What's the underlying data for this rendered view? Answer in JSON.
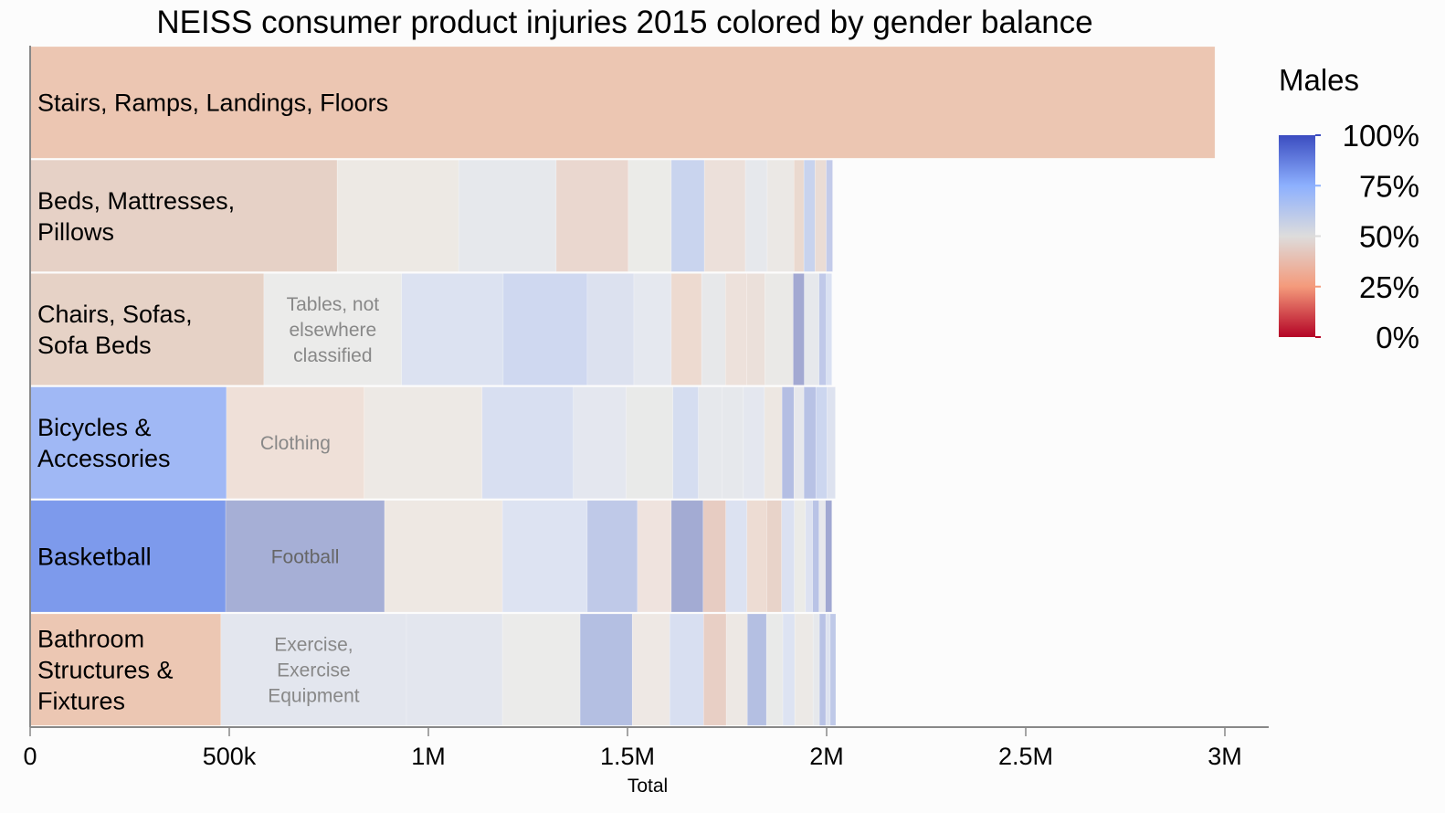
{
  "chart_data": {
    "type": "bar",
    "subtype": "stacked-horizontal-treemap-rows",
    "title": "NEISS consumer product injuries 2015 colored by gender balance",
    "xlabel": "Total",
    "ylabel": "",
    "xlim": [
      0,
      3100000
    ],
    "x_ticks": [
      {
        "value": 0,
        "label": "0"
      },
      {
        "value": 500000,
        "label": "500k"
      },
      {
        "value": 1000000,
        "label": "1M"
      },
      {
        "value": 1500000,
        "label": "1.5M"
      },
      {
        "value": 2000000,
        "label": "2M"
      },
      {
        "value": 2500000,
        "label": "2.5M"
      },
      {
        "value": 3000000,
        "label": "3M"
      }
    ],
    "legend": {
      "title": "Males",
      "placement": "right",
      "type": "diverging-gradient",
      "stops": [
        {
          "value": 1.0,
          "label": "100%",
          "color": "#3b4cc0"
        },
        {
          "value": 0.75,
          "label": "75%",
          "color": "#8db0fe"
        },
        {
          "value": 0.5,
          "label": "50%",
          "color": "#dddcdc"
        },
        {
          "value": 0.25,
          "label": "25%",
          "color": "#f49a7b"
        },
        {
          "value": 0.0,
          "label": "0%",
          "color": "#b40426"
        }
      ]
    },
    "rows": [
      {
        "label": "Stairs, Ramps, Landings, Floors",
        "segments": [
          {
            "label": "Stairs, Ramps, Landings, Floors",
            "value": 2975000,
            "male_share": 0.36,
            "color": "#ecc6b2"
          }
        ]
      },
      {
        "label": "Beds, Mattresses, Pillows",
        "segments": [
          {
            "label": "Beds, Mattresses, Pillows",
            "value": 771000,
            "male_share": 0.42,
            "color": "#e6d1c6"
          },
          {
            "label": "",
            "value": 305000,
            "male_share": 0.49,
            "color": "#ede9e4"
          },
          {
            "label": "",
            "value": 245000,
            "male_share": 0.52,
            "color": "#e6e8ec"
          },
          {
            "label": "",
            "value": 181000,
            "male_share": 0.42,
            "color": "#ead7cf"
          },
          {
            "label": "",
            "value": 108000,
            "male_share": 0.5,
            "color": "#ebebe8"
          },
          {
            "label": "",
            "value": 83000,
            "male_share": 0.62,
            "color": "#c9d4ee"
          },
          {
            "label": "",
            "value": 103000,
            "male_share": 0.46,
            "color": "#ece0da"
          },
          {
            "label": "",
            "value": 55000,
            "male_share": 0.52,
            "color": "#e6e8ec"
          },
          {
            "label": "",
            "value": 67000,
            "male_share": 0.5,
            "color": "#ebe8e5"
          },
          {
            "label": "",
            "value": 25000,
            "male_share": 0.42,
            "color": "#ead9cf"
          },
          {
            "label": "",
            "value": 28000,
            "male_share": 0.62,
            "color": "#c8d3ee"
          },
          {
            "label": "",
            "value": 28000,
            "male_share": 0.45,
            "color": "#eadcd5"
          },
          {
            "label": "",
            "value": 16000,
            "male_share": 0.66,
            "color": "#c3cbea"
          }
        ]
      },
      {
        "label": "Chairs, Sofas, Sofa Beds",
        "segments": [
          {
            "label": "Chairs, Sofas, Sofa Beds",
            "value": 587000,
            "male_share": 0.42,
            "color": "#e6d2c6"
          },
          {
            "label": "Tables, not elsewhere classified",
            "value": 346000,
            "male_share": 0.5,
            "color": "#ebebea"
          },
          {
            "label": "",
            "value": 255000,
            "male_share": 0.56,
            "color": "#dce2f1"
          },
          {
            "label": "",
            "value": 211000,
            "male_share": 0.6,
            "color": "#cfd8f0"
          },
          {
            "label": "",
            "value": 117000,
            "male_share": 0.56,
            "color": "#dce1ef"
          },
          {
            "label": "",
            "value": 94000,
            "male_share": 0.53,
            "color": "#e5e8ef"
          },
          {
            "label": "",
            "value": 76000,
            "male_share": 0.43,
            "color": "#eddad0"
          },
          {
            "label": "",
            "value": 60000,
            "male_share": 0.51,
            "color": "#e7e8ea"
          },
          {
            "label": "",
            "value": 53000,
            "male_share": 0.46,
            "color": "#ede1db"
          },
          {
            "label": "",
            "value": 46000,
            "male_share": 0.46,
            "color": "#ebe0da"
          },
          {
            "label": "",
            "value": 71000,
            "male_share": 0.5,
            "color": "#eae9e7"
          },
          {
            "label": "",
            "value": 28000,
            "male_share": 0.72,
            "color": "#a3a9d2"
          },
          {
            "label": "",
            "value": 37000,
            "male_share": 0.52,
            "color": "#e6e8ec"
          },
          {
            "label": "",
            "value": 18000,
            "male_share": 0.66,
            "color": "#c0c9e9"
          },
          {
            "label": "",
            "value": 14000,
            "male_share": 0.56,
            "color": "#dae1f2"
          }
        ]
      },
      {
        "label": "Bicycles & Accessories",
        "segments": [
          {
            "label": "Bicycles & Accessories",
            "value": 493000,
            "male_share": 0.72,
            "color": "#a0b8f5"
          },
          {
            "label": "Clothing",
            "value": 346000,
            "male_share": 0.45,
            "color": "#efe0d8"
          },
          {
            "label": "",
            "value": 296000,
            "male_share": 0.49,
            "color": "#ede9e5"
          },
          {
            "label": "",
            "value": 229000,
            "male_share": 0.57,
            "color": "#d8dff1"
          },
          {
            "label": "",
            "value": 133000,
            "male_share": 0.53,
            "color": "#e4e7ef"
          },
          {
            "label": "",
            "value": 117000,
            "male_share": 0.51,
            "color": "#e9eae9"
          },
          {
            "label": "",
            "value": 64000,
            "male_share": 0.58,
            "color": "#d5ddf0"
          },
          {
            "label": "",
            "value": 60000,
            "male_share": 0.52,
            "color": "#e6e8ec"
          },
          {
            "label": "",
            "value": 53000,
            "male_share": 0.52,
            "color": "#e6e8ec"
          },
          {
            "label": "",
            "value": 53000,
            "male_share": 0.53,
            "color": "#e4e7ef"
          },
          {
            "label": "",
            "value": 44000,
            "male_share": 0.48,
            "color": "#ede7e2"
          },
          {
            "label": "",
            "value": 30000,
            "male_share": 0.68,
            "color": "#b4bee3"
          },
          {
            "label": "",
            "value": 25000,
            "male_share": 0.52,
            "color": "#e7e8ec"
          },
          {
            "label": "",
            "value": 30000,
            "male_share": 0.67,
            "color": "#b8c2e5"
          },
          {
            "label": "",
            "value": 28000,
            "male_share": 0.6,
            "color": "#ccd6ef"
          },
          {
            "label": "",
            "value": 21000,
            "male_share": 0.55,
            "color": "#dde2ef"
          }
        ]
      },
      {
        "label": "Basketball",
        "segments": [
          {
            "label": "Basketball",
            "value": 491000,
            "male_share": 0.82,
            "color": "#7d9aec"
          },
          {
            "label": "Football",
            "value": 399000,
            "male_share": 0.74,
            "color": "#a6afd6"
          },
          {
            "label": "",
            "value": 296000,
            "male_share": 0.48,
            "color": "#eee8e3"
          },
          {
            "label": "",
            "value": 213000,
            "male_share": 0.56,
            "color": "#dde3f2"
          },
          {
            "label": "",
            "value": 126000,
            "male_share": 0.64,
            "color": "#bfc9e8"
          },
          {
            "label": "",
            "value": 85000,
            "male_share": 0.46,
            "color": "#efe3de"
          },
          {
            "label": "",
            "value": 80000,
            "male_share": 0.74,
            "color": "#a3abd3"
          },
          {
            "label": "",
            "value": 57000,
            "male_share": 0.4,
            "color": "#e7ccc2"
          },
          {
            "label": "",
            "value": 53000,
            "male_share": 0.56,
            "color": "#dce2f1"
          },
          {
            "label": "",
            "value": 50000,
            "male_share": 0.45,
            "color": "#eddcd3"
          },
          {
            "label": "",
            "value": 37000,
            "male_share": 0.42,
            "color": "#e8d3c9"
          },
          {
            "label": "",
            "value": 32000,
            "male_share": 0.56,
            "color": "#dbe1f1"
          },
          {
            "label": "",
            "value": 28000,
            "male_share": 0.51,
            "color": "#ebebe8"
          },
          {
            "label": "",
            "value": 18000,
            "male_share": 0.56,
            "color": "#dde2f1"
          },
          {
            "label": "",
            "value": 16000,
            "male_share": 0.66,
            "color": "#b9c3e6"
          },
          {
            "label": "",
            "value": 16000,
            "male_share": 0.52,
            "color": "#e7e8ec"
          },
          {
            "label": "",
            "value": 16000,
            "male_share": 0.74,
            "color": "#a1a8d2"
          }
        ]
      },
      {
        "label": "Bathroom Structures & Fixtures",
        "segments": [
          {
            "label": "Bathroom Structures & Fixtures",
            "value": 479000,
            "male_share": 0.36,
            "color": "#ecc7b3"
          },
          {
            "label": "Exercise, Exercise Equipment",
            "value": 466000,
            "male_share": 0.53,
            "color": "#e3e6ee"
          },
          {
            "label": "",
            "value": 241000,
            "male_share": 0.53,
            "color": "#e3e6ee"
          },
          {
            "label": "",
            "value": 195000,
            "male_share": 0.5,
            "color": "#ebebea"
          },
          {
            "label": "",
            "value": 131000,
            "male_share": 0.68,
            "color": "#b4bfe2"
          },
          {
            "label": "",
            "value": 94000,
            "male_share": 0.48,
            "color": "#eee8e4"
          },
          {
            "label": "",
            "value": 85000,
            "male_share": 0.57,
            "color": "#d8dff1"
          },
          {
            "label": "",
            "value": 57000,
            "male_share": 0.41,
            "color": "#e8cfc5"
          },
          {
            "label": "",
            "value": 53000,
            "male_share": 0.49,
            "color": "#ede8e4"
          },
          {
            "label": "",
            "value": 48000,
            "male_share": 0.68,
            "color": "#b4bfe2"
          },
          {
            "label": "",
            "value": 41000,
            "male_share": 0.51,
            "color": "#e9eae9"
          },
          {
            "label": "",
            "value": 30000,
            "male_share": 0.56,
            "color": "#dde3f2"
          },
          {
            "label": "",
            "value": 46000,
            "male_share": 0.49,
            "color": "#ece9e6"
          },
          {
            "label": "",
            "value": 16000,
            "male_share": 0.52,
            "color": "#e6e8ec"
          },
          {
            "label": "",
            "value": 16000,
            "male_share": 0.67,
            "color": "#b8c2e5"
          },
          {
            "label": "",
            "value": 11000,
            "male_share": 0.55,
            "color": "#dde2ef"
          },
          {
            "label": "",
            "value": 14000,
            "male_share": 0.64,
            "color": "#bfc9e8"
          }
        ]
      }
    ]
  }
}
